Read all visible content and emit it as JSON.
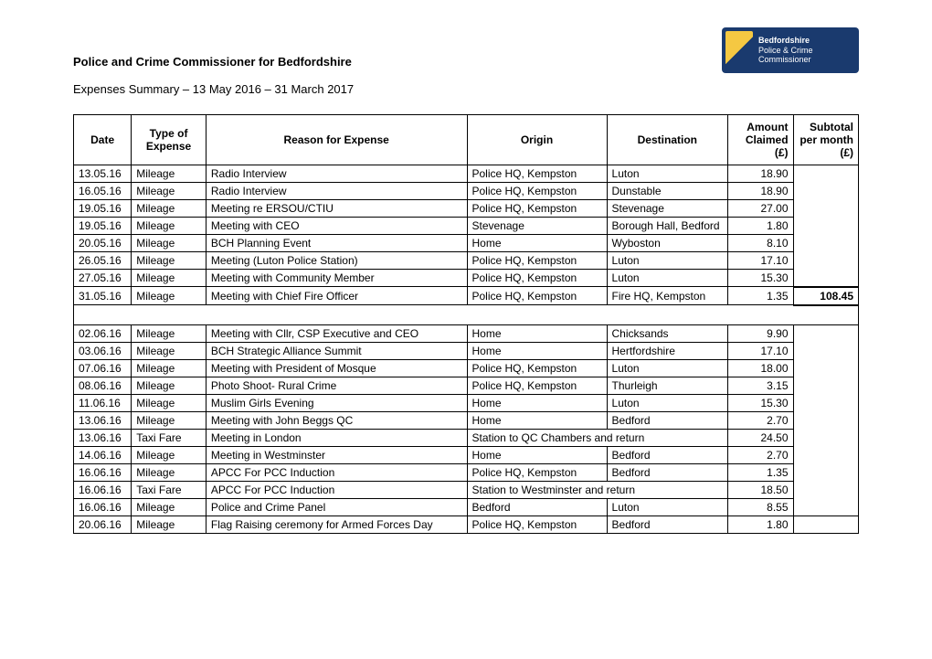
{
  "document": {
    "title": "Police and Crime Commissioner for Bedfordshire",
    "subtitle": "Expenses Summary – 13 May 2016 – 31 March 2017"
  },
  "logo": {
    "line1": "Bedfordshire",
    "line2": "Police & Crime",
    "line3": "Commissioner",
    "bg_color": "#1a3a6e",
    "badge_yellow": "#f5c842"
  },
  "table": {
    "columns": [
      {
        "key": "date",
        "label": "Date"
      },
      {
        "key": "type",
        "label": "Type of Expense"
      },
      {
        "key": "reason",
        "label": "Reason for Expense"
      },
      {
        "key": "origin",
        "label": "Origin"
      },
      {
        "key": "destination",
        "label": "Destination"
      },
      {
        "key": "amount",
        "label": "Amount Claimed (£)"
      },
      {
        "key": "subtotal",
        "label": "Subtotal per month (£)"
      }
    ],
    "groups": [
      {
        "rows": [
          {
            "date": "13.05.16",
            "type": "Mileage",
            "reason": "Radio Interview",
            "origin": "Police HQ, Kempston",
            "destination": "Luton",
            "amount": "18.90"
          },
          {
            "date": "16.05.16",
            "type": "Mileage",
            "reason": "Radio Interview",
            "origin": "Police HQ, Kempston",
            "destination": "Dunstable",
            "amount": "18.90"
          },
          {
            "date": "19.05.16",
            "type": "Mileage",
            "reason": "Meeting re ERSOU/CTIU",
            "origin": "Police HQ, Kempston",
            "destination": "Stevenage",
            "amount": "27.00"
          },
          {
            "date": "19.05.16",
            "type": "Mileage",
            "reason": "Meeting with CEO",
            "origin": "Stevenage",
            "destination": "Borough Hall, Bedford",
            "amount": "1.80"
          },
          {
            "date": "20.05.16",
            "type": "Mileage",
            "reason": "BCH Planning Event",
            "origin": "Home",
            "destination": "Wyboston",
            "amount": "8.10"
          },
          {
            "date": "26.05.16",
            "type": "Mileage",
            "reason": "Meeting (Luton Police Station)",
            "origin": "Police HQ, Kempston",
            "destination": "Luton",
            "amount": "17.10"
          },
          {
            "date": "27.05.16",
            "type": "Mileage",
            "reason": "Meeting with Community Member",
            "origin": "Police HQ, Kempston",
            "destination": "Luton",
            "amount": "15.30"
          },
          {
            "date": "31.05.16",
            "type": "Mileage",
            "reason": "Meeting with Chief Fire Officer",
            "origin": "Police HQ, Kempston",
            "destination": "Fire HQ, Kempston",
            "amount": "1.35"
          }
        ],
        "subtotal": "108.45"
      },
      {
        "rows": [
          {
            "date": "02.06.16",
            "type": "Mileage",
            "reason": "Meeting with Cllr, CSP Executive and CEO",
            "origin": "Home",
            "destination": "Chicksands",
            "amount": "9.90"
          },
          {
            "date": "03.06.16",
            "type": "Mileage",
            "reason": "BCH Strategic Alliance Summit",
            "origin": "Home",
            "destination": "Hertfordshire",
            "amount": "17.10"
          },
          {
            "date": "07.06.16",
            "type": "Mileage",
            "reason": "Meeting with President of Mosque",
            "origin": "Police HQ, Kempston",
            "destination": "Luton",
            "amount": "18.00"
          },
          {
            "date": "08.06.16",
            "type": "Mileage",
            "reason": "Photo Shoot- Rural Crime",
            "origin": "Police HQ, Kempston",
            "destination": "Thurleigh",
            "amount": "3.15"
          },
          {
            "date": "11.06.16",
            "type": "Mileage",
            "reason": "Muslim Girls Evening",
            "origin": "Home",
            "destination": "Luton",
            "amount": "15.30"
          },
          {
            "date": "13.06.16",
            "type": "Mileage",
            "reason": "Meeting with John Beggs QC",
            "origin": "Home",
            "destination": "Bedford",
            "amount": "2.70"
          },
          {
            "date": "13.06.16",
            "type": "Taxi Fare",
            "reason": "Meeting in London",
            "origin_span": "Station to QC Chambers and return",
            "amount": "24.50"
          },
          {
            "date": "14.06.16",
            "type": "Mileage",
            "reason": "Meeting in Westminster",
            "origin": "Home",
            "destination": "Bedford",
            "amount": "2.70"
          },
          {
            "date": "16.06.16",
            "type": "Mileage",
            "reason": "APCC For PCC Induction",
            "origin": "Police HQ, Kempston",
            "destination": "Bedford",
            "amount": "1.35"
          },
          {
            "date": "16.06.16",
            "type": "Taxi Fare",
            "reason": "APCC For PCC Induction",
            "origin_span": "Station to Westminster and return",
            "amount": "18.50"
          },
          {
            "date": "16.06.16",
            "type": "Mileage",
            "reason": "Police and Crime Panel",
            "origin": "Bedford",
            "destination": "Luton",
            "amount": "8.55"
          },
          {
            "date": "20.06.16",
            "type": "Mileage",
            "reason": "Flag Raising ceremony for Armed Forces Day",
            "origin": "Police HQ, Kempston",
            "destination": "Bedford",
            "amount": "1.80"
          }
        ],
        "subtotal": null
      }
    ],
    "border_color": "#000000",
    "font_size": 12
  }
}
